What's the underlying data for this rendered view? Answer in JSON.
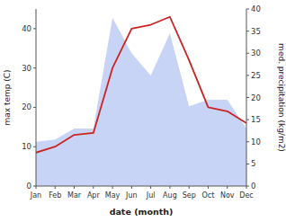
{
  "chart_data": {
    "type": "line",
    "xlabel": "date (month)",
    "ylabel": "max temp (C)",
    "y2label": "med. precipitation (kg/m2)",
    "categories": [
      "Jan",
      "Feb",
      "Mar",
      "Apr",
      "May",
      "Jun",
      "Jul",
      "Aug",
      "Sep",
      "Oct",
      "Nov",
      "Dec"
    ],
    "series": [
      {
        "type": "area",
        "axis": "y2",
        "color": "#c8d4f5",
        "values": [
          10.0,
          10.5,
          13.0,
          13.0,
          38.0,
          30.0,
          25.0,
          34.5,
          18.0,
          19.5,
          19.5,
          13.0
        ]
      },
      {
        "type": "line",
        "color": "#cc2222",
        "values": [
          8.5,
          10.0,
          13.0,
          13.5,
          30.0,
          40.0,
          41.0,
          43.0,
          32.0,
          20.0,
          19.0,
          16.0
        ]
      }
    ],
    "ylim": [
      0,
      45
    ],
    "yticks": [
      0,
      10,
      20,
      30,
      40
    ],
    "y2lim": [
      0,
      40
    ],
    "y2ticks": [
      0,
      5,
      10,
      15,
      20,
      25,
      30,
      35,
      40
    ],
    "grid": false
  }
}
